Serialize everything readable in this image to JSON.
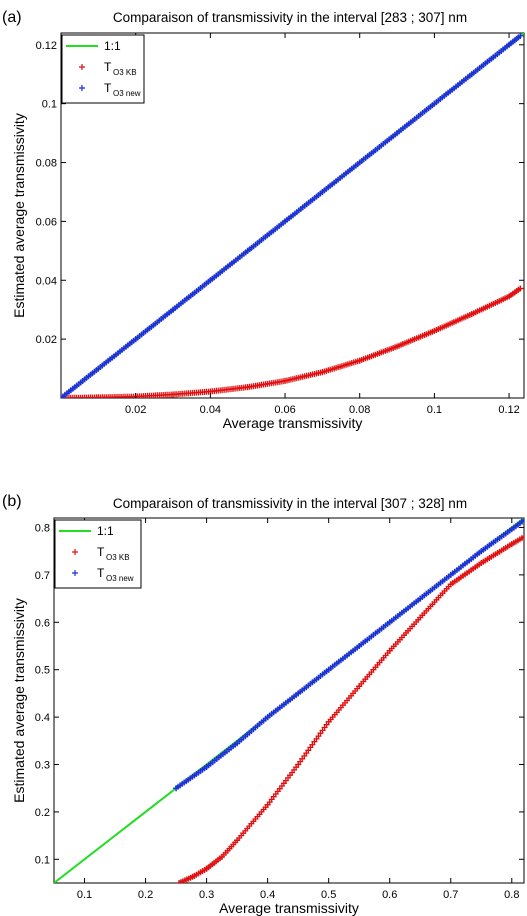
{
  "chart_data": [
    {
      "type": "scatter",
      "panel_label": "(a)",
      "title": "Comparaison of transmissivity in the interval [283 ; 307] nm",
      "xlabel": "Average transmissivity",
      "ylabel": "Estimated average transmissivity",
      "xlim": [
        0,
        0.124
      ],
      "ylim": [
        0,
        0.124
      ],
      "xticks": [
        0.02,
        0.04,
        0.06,
        0.08,
        0.1,
        0.12
      ],
      "xtick_labels": [
        "0.02",
        "0.04",
        "0.06",
        "0.08",
        "0.1",
        "0.12"
      ],
      "yticks": [
        0.02,
        0.04,
        0.06,
        0.08,
        0.1,
        0.12
      ],
      "ytick_labels": [
        "0.02",
        "0.04",
        "0.06",
        "0.08",
        "0.1",
        "0.12"
      ],
      "grid": false,
      "legend_position": "top-left",
      "series": [
        {
          "name": "1:1",
          "label_main": "1:1",
          "label_sub": "",
          "kind": "line",
          "color": "#22dd22",
          "points": [
            [
              0,
              0
            ],
            [
              0.124,
              0.124
            ]
          ]
        },
        {
          "name": "T O3 KB",
          "label_main": "T",
          "label_sub": "O3 KB",
          "kind": "markers",
          "color": "#e01010",
          "points": [
            [
              0.0,
              0.0
            ],
            [
              0.01,
              0.0002
            ],
            [
              0.02,
              0.0005
            ],
            [
              0.03,
              0.0012
            ],
            [
              0.04,
              0.0022
            ],
            [
              0.05,
              0.0037
            ],
            [
              0.06,
              0.0058
            ],
            [
              0.07,
              0.0088
            ],
            [
              0.08,
              0.0127
            ],
            [
              0.09,
              0.0175
            ],
            [
              0.1,
              0.0228
            ],
            [
              0.11,
              0.0285
            ],
            [
              0.12,
              0.0345
            ],
            [
              0.123,
              0.0372
            ]
          ]
        },
        {
          "name": "T O3 new",
          "label_main": "T",
          "label_sub": "O3 new",
          "kind": "markers",
          "color": "#1a2fd6",
          "points": [
            [
              0.0,
              0.0
            ],
            [
              0.01,
              0.01
            ],
            [
              0.02,
              0.02
            ],
            [
              0.03,
              0.03
            ],
            [
              0.04,
              0.04
            ],
            [
              0.05,
              0.05
            ],
            [
              0.06,
              0.06
            ],
            [
              0.07,
              0.07
            ],
            [
              0.08,
              0.08
            ],
            [
              0.09,
              0.09
            ],
            [
              0.1,
              0.1
            ],
            [
              0.11,
              0.11
            ],
            [
              0.12,
              0.12
            ],
            [
              0.123,
              0.123
            ]
          ]
        }
      ]
    },
    {
      "type": "scatter",
      "panel_label": "(b)",
      "title": "Comparaison of transmissivity in the interval [307 ; 328] nm",
      "xlabel": "Average transmissivity",
      "ylabel": "Estimated average transmissivity",
      "xlim": [
        0.05,
        0.82
      ],
      "ylim": [
        0.05,
        0.82
      ],
      "xticks": [
        0.1,
        0.2,
        0.3,
        0.4,
        0.5,
        0.6,
        0.7,
        0.8
      ],
      "xtick_labels": [
        "0.1",
        "0.2",
        "0.3",
        "0.4",
        "0.5",
        "0.6",
        "0.7",
        "0.8"
      ],
      "yticks": [
        0.1,
        0.2,
        0.3,
        0.4,
        0.5,
        0.6,
        0.7,
        0.8
      ],
      "ytick_labels": [
        "0.1",
        "0.2",
        "0.3",
        "0.4",
        "0.5",
        "0.6",
        "0.7",
        "0.8"
      ],
      "grid": false,
      "legend_position": "top-left",
      "series": [
        {
          "name": "1:1",
          "label_main": "1:1",
          "label_sub": "",
          "kind": "line",
          "color": "#22dd22",
          "points": [
            [
              0.05,
              0.05
            ],
            [
              0.82,
              0.82
            ]
          ]
        },
        {
          "name": "T O3 KB",
          "label_main": "T",
          "label_sub": "O3 KB",
          "kind": "markers",
          "color": "#e01010",
          "points": [
            [
              0.255,
              0.05
            ],
            [
              0.28,
              0.065
            ],
            [
              0.3,
              0.08
            ],
            [
              0.325,
              0.105
            ],
            [
              0.35,
              0.14
            ],
            [
              0.4,
              0.215
            ],
            [
              0.45,
              0.3
            ],
            [
              0.5,
              0.39
            ],
            [
              0.55,
              0.465
            ],
            [
              0.6,
              0.54
            ],
            [
              0.65,
              0.61
            ],
            [
              0.7,
              0.68
            ],
            [
              0.75,
              0.725
            ],
            [
              0.8,
              0.765
            ],
            [
              0.82,
              0.78
            ]
          ]
        },
        {
          "name": "T O3 new",
          "label_main": "T",
          "label_sub": "O3 new",
          "kind": "markers",
          "color": "#1a2fd6",
          "points": [
            [
              0.25,
              0.25
            ],
            [
              0.3,
              0.295
            ],
            [
              0.35,
              0.345
            ],
            [
              0.4,
              0.4
            ],
            [
              0.45,
              0.45
            ],
            [
              0.5,
              0.5
            ],
            [
              0.55,
              0.55
            ],
            [
              0.6,
              0.6
            ],
            [
              0.65,
              0.65
            ],
            [
              0.7,
              0.7
            ],
            [
              0.75,
              0.75
            ],
            [
              0.82,
              0.815
            ]
          ]
        }
      ]
    }
  ]
}
